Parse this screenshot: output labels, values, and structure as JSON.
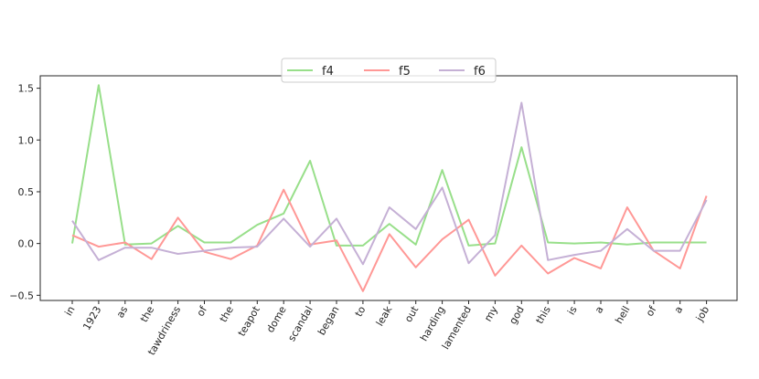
{
  "chart_data": {
    "type": "line",
    "categories": [
      "in",
      "1923",
      "as",
      "the",
      "tawdriness",
      "of",
      "the",
      "teapot",
      "dome",
      "scandal",
      "began",
      "to",
      "leak",
      "out",
      "harding",
      "lamented",
      "my",
      "god",
      "this",
      "is",
      "a",
      "hell",
      "of",
      "a",
      "job"
    ],
    "series": [
      {
        "name": "f4",
        "color": "#98df8a",
        "values": [
          0.0,
          1.53,
          -0.01,
          0.0,
          0.17,
          0.01,
          0.01,
          0.18,
          0.29,
          0.8,
          -0.02,
          -0.02,
          0.19,
          -0.01,
          0.71,
          -0.02,
          0.0,
          0.93,
          0.01,
          0.0,
          0.01,
          -0.01,
          0.01,
          0.01,
          0.01
        ]
      },
      {
        "name": "f5",
        "color": "#ff9896",
        "values": [
          0.08,
          -0.03,
          0.01,
          -0.15,
          0.25,
          -0.08,
          -0.15,
          -0.02,
          0.52,
          -0.01,
          0.03,
          -0.46,
          0.09,
          -0.23,
          0.04,
          0.23,
          -0.31,
          -0.02,
          -0.29,
          -0.14,
          -0.24,
          0.35,
          -0.07,
          -0.24,
          0.46
        ]
      },
      {
        "name": "f6",
        "color": "#c5b0d5",
        "values": [
          0.22,
          -0.16,
          -0.04,
          -0.04,
          -0.1,
          -0.07,
          -0.04,
          -0.03,
          0.24,
          -0.03,
          0.24,
          -0.2,
          0.35,
          0.14,
          0.54,
          -0.19,
          0.08,
          1.36,
          -0.16,
          -0.11,
          -0.07,
          0.14,
          -0.07,
          -0.07,
          0.42
        ]
      }
    ],
    "yticks": [
      "1.5",
      "1.0",
      "0.5",
      "0.0",
      "−0.5"
    ],
    "ytick_values": [
      1.5,
      1.0,
      0.5,
      0.0,
      -0.5
    ],
    "ylim": [
      -0.55,
      1.62
    ],
    "title": "",
    "xlabel": "",
    "ylabel": "",
    "legend_position": "top-center",
    "legend_columns": 3,
    "grid": false
  }
}
